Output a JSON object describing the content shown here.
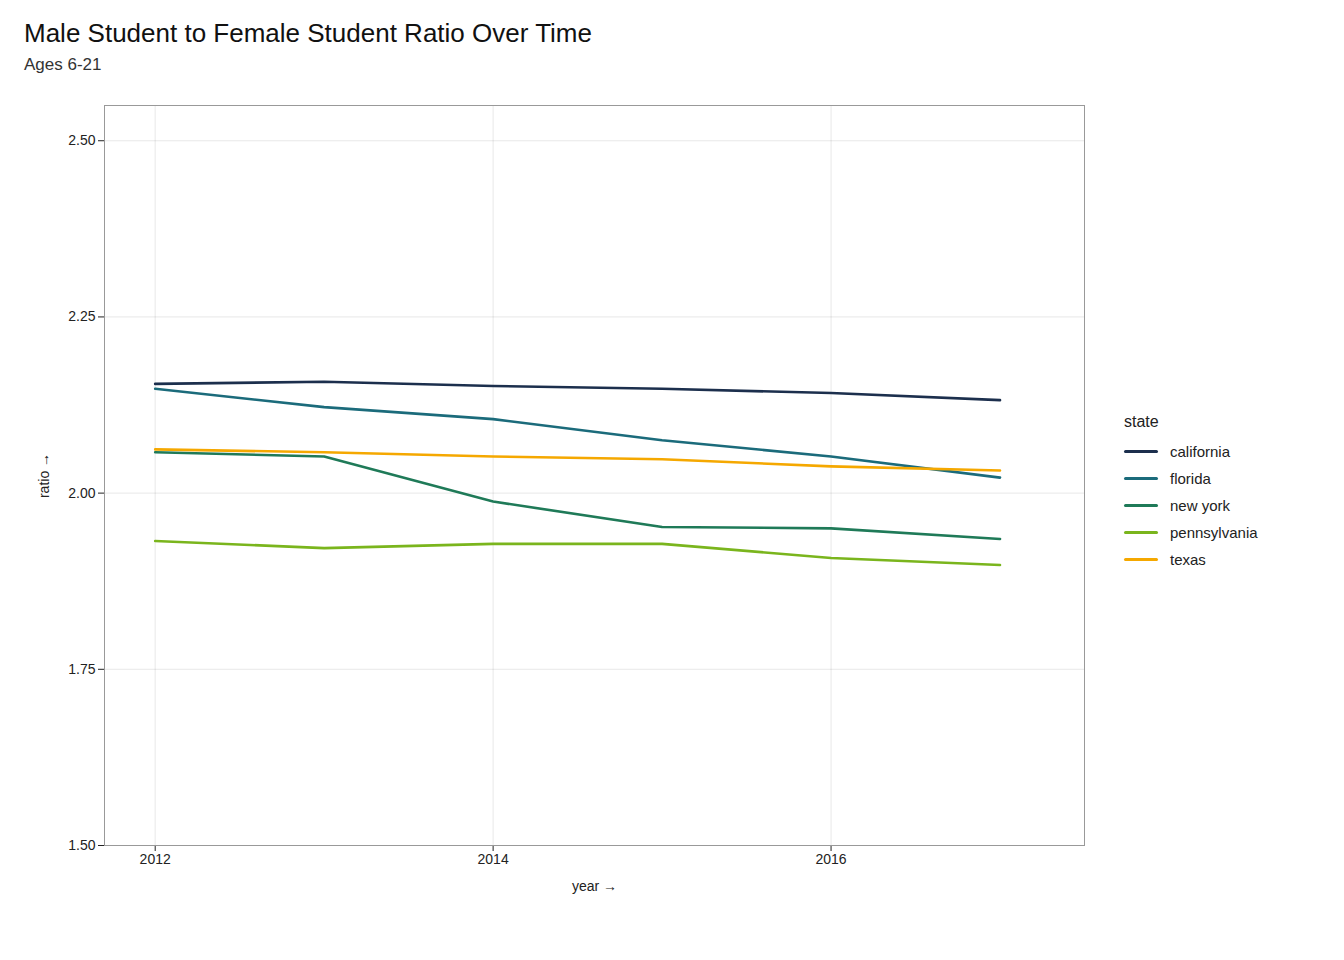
{
  "chart_data": {
    "type": "line",
    "title": "Male Student to Female Student Ratio Over Time",
    "subtitle": "Ages 6-21",
    "xlabel": "year",
    "ylabel": "ratio",
    "legend_title": "state",
    "x": [
      2012,
      2013,
      2014,
      2015,
      2016,
      2017
    ],
    "series": [
      {
        "name": "california",
        "color": "#1c2f4d",
        "values": [
          2.155,
          2.158,
          2.152,
          2.148,
          2.142,
          2.132
        ]
      },
      {
        "name": "florida",
        "color": "#1b6b7b",
        "values": [
          2.148,
          2.122,
          2.105,
          2.075,
          2.052,
          2.022
        ]
      },
      {
        "name": "new york",
        "color": "#1f7a58",
        "values": [
          2.058,
          2.052,
          1.988,
          1.952,
          1.95,
          1.935
        ]
      },
      {
        "name": "pennsylvania",
        "color": "#7ab51d",
        "values": [
          1.932,
          1.922,
          1.928,
          1.928,
          1.908,
          1.898
        ]
      },
      {
        "name": "texas",
        "color": "#f5a800",
        "values": [
          2.062,
          2.058,
          2.052,
          2.048,
          2.038,
          2.032
        ]
      }
    ],
    "xlim": [
      2011.7,
      2017.5
    ],
    "xticks": [
      2012,
      2014,
      2016
    ],
    "ylim": [
      1.5,
      2.55
    ],
    "yticks": [
      {
        "value": 1.5,
        "label": "1.50"
      },
      1.75,
      {
        "value": 2.0,
        "label": "2.00"
      },
      2.25,
      {
        "value": 2.5,
        "label": "2.50"
      }
    ],
    "grid": true,
    "legend": "right"
  }
}
